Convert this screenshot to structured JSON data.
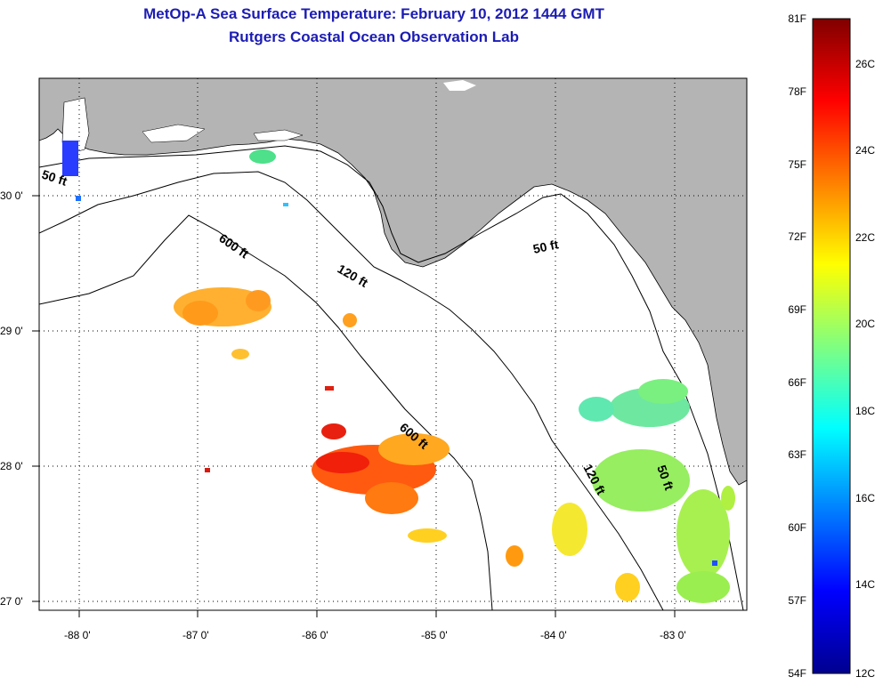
{
  "title": {
    "line1": "MetOp-A Sea Surface Temperature:  February 10, 2012 1444 GMT",
    "line2": "Rutgers Coastal Ocean Observation Lab"
  },
  "map": {
    "lon_labels": [
      "-88 0'",
      "-87 0'",
      "-86 0'",
      "-85 0'",
      "-84 0'",
      "-83 0'"
    ],
    "lat_labels": [
      "30 0'",
      "29 0'",
      "28 0'",
      "27 0'"
    ],
    "contour_labels": [
      "50 ft",
      "600 ft",
      "120 ft",
      "50 ft",
      "600 ft",
      "120 ft",
      "50 ft"
    ],
    "land_color": "#b4b4b4",
    "ocean_color": "#ffffff"
  },
  "colorbar": {
    "f_labels": [
      "81F",
      "78F",
      "75F",
      "72F",
      "69F",
      "66F",
      "63F",
      "60F",
      "57F",
      "54F"
    ],
    "c_labels": [
      "26C",
      "24C",
      "22C",
      "20C",
      "18C",
      "16C",
      "14C",
      "12C"
    ],
    "colormap": "jet",
    "range_c": [
      12,
      27
    ]
  }
}
